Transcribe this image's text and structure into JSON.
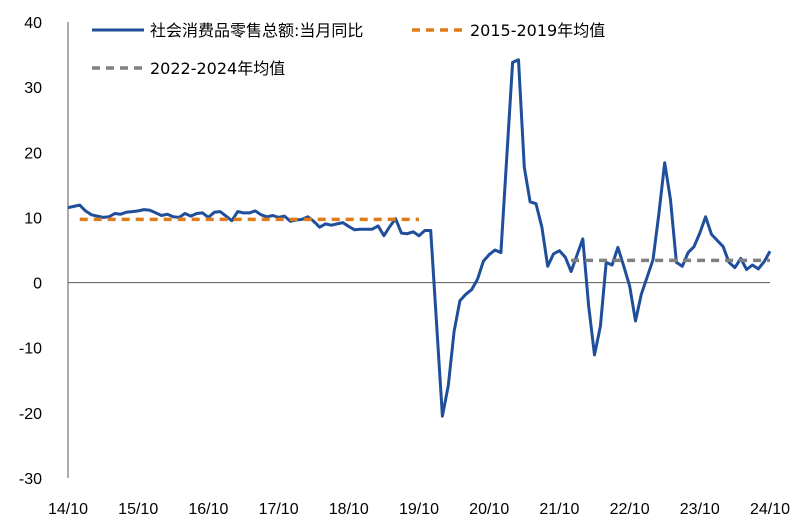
{
  "chart_data": {
    "type": "line",
    "title": "",
    "xlabel": "",
    "ylabel": "",
    "ylim": [
      -30,
      40
    ],
    "yticks": [
      "40",
      "30",
      "20",
      "10",
      "0",
      "-10",
      "-20",
      "-30"
    ],
    "xticks": [
      "14/10",
      "15/10",
      "16/10",
      "17/10",
      "18/10",
      "19/10",
      "20/10",
      "21/10",
      "22/10",
      "23/10",
      "24/10"
    ],
    "grid": false,
    "legend_position": "top",
    "series": [
      {
        "name": "社会消费品零售总额:当月同比",
        "style": "solid",
        "color": "#1F4E9A",
        "points": [
          [
            "14/10",
            11.5
          ],
          [
            "14/11",
            11.7
          ],
          [
            "14/12",
            11.9
          ],
          [
            "15/01",
            11.0
          ],
          [
            "15/02",
            10.4
          ],
          [
            "15/03",
            10.2
          ],
          [
            "15/04",
            10.0
          ],
          [
            "15/05",
            10.1
          ],
          [
            "15/06",
            10.6
          ],
          [
            "15/07",
            10.5
          ],
          [
            "15/08",
            10.8
          ],
          [
            "15/09",
            10.9
          ],
          [
            "15/10",
            11.0
          ],
          [
            "15/11",
            11.2
          ],
          [
            "15/12",
            11.1
          ],
          [
            "16/01",
            10.7
          ],
          [
            "16/02",
            10.3
          ],
          [
            "16/03",
            10.5
          ],
          [
            "16/04",
            10.1
          ],
          [
            "16/05",
            10.0
          ],
          [
            "16/06",
            10.6
          ],
          [
            "16/07",
            10.2
          ],
          [
            "16/08",
            10.6
          ],
          [
            "16/09",
            10.7
          ],
          [
            "16/10",
            10.0
          ],
          [
            "16/11",
            10.8
          ],
          [
            "16/12",
            10.9
          ],
          [
            "17/01",
            10.2
          ],
          [
            "17/02",
            9.5
          ],
          [
            "17/03",
            10.9
          ],
          [
            "17/04",
            10.7
          ],
          [
            "17/05",
            10.7
          ],
          [
            "17/06",
            11.0
          ],
          [
            "17/07",
            10.4
          ],
          [
            "17/08",
            10.1
          ],
          [
            "17/09",
            10.3
          ],
          [
            "17/10",
            10.0
          ],
          [
            "17/11",
            10.2
          ],
          [
            "17/12",
            9.4
          ],
          [
            "18/01",
            9.6
          ],
          [
            "18/02",
            9.7
          ],
          [
            "18/03",
            10.1
          ],
          [
            "18/04",
            9.4
          ],
          [
            "18/05",
            8.5
          ],
          [
            "18/06",
            9.0
          ],
          [
            "18/07",
            8.8
          ],
          [
            "18/08",
            9.0
          ],
          [
            "18/09",
            9.2
          ],
          [
            "18/10",
            8.6
          ],
          [
            "18/11",
            8.1
          ],
          [
            "18/12",
            8.2
          ],
          [
            "19/01",
            8.2
          ],
          [
            "19/02",
            8.2
          ],
          [
            "19/03",
            8.7
          ],
          [
            "19/04",
            7.2
          ],
          [
            "19/05",
            8.6
          ],
          [
            "19/06",
            9.8
          ],
          [
            "19/07",
            7.6
          ],
          [
            "19/08",
            7.5
          ],
          [
            "19/09",
            7.8
          ],
          [
            "19/10",
            7.2
          ],
          [
            "19/11",
            8.0
          ],
          [
            "19/12",
            8.0
          ],
          [
            "20/02",
            -20.5
          ],
          [
            "20/03",
            -15.8
          ],
          [
            "20/04",
            -7.5
          ],
          [
            "20/05",
            -2.8
          ],
          [
            "20/06",
            -1.8
          ],
          [
            "20/07",
            -1.1
          ],
          [
            "20/08",
            0.5
          ],
          [
            "20/09",
            3.3
          ],
          [
            "20/10",
            4.3
          ],
          [
            "20/11",
            5.0
          ],
          [
            "20/12",
            4.6
          ],
          [
            "21/02",
            33.8
          ],
          [
            "21/03",
            34.2
          ],
          [
            "21/04",
            17.7
          ],
          [
            "21/05",
            12.4
          ],
          [
            "21/06",
            12.1
          ],
          [
            "21/07",
            8.5
          ],
          [
            "21/08",
            2.5
          ],
          [
            "21/09",
            4.4
          ],
          [
            "21/10",
            4.9
          ],
          [
            "21/11",
            3.9
          ],
          [
            "21/12",
            1.7
          ],
          [
            "22/02",
            6.7
          ],
          [
            "22/03",
            -3.5
          ],
          [
            "22/04",
            -11.1
          ],
          [
            "22/05",
            -6.7
          ],
          [
            "22/06",
            3.1
          ],
          [
            "22/07",
            2.7
          ],
          [
            "22/08",
            5.4
          ],
          [
            "22/09",
            2.5
          ],
          [
            "22/10",
            -0.5
          ],
          [
            "22/11",
            -5.9
          ],
          [
            "22/12",
            -1.8
          ],
          [
            "23/02",
            3.5
          ],
          [
            "23/03",
            10.6
          ],
          [
            "23/04",
            18.4
          ],
          [
            "23/05",
            12.7
          ],
          [
            "23/06",
            3.1
          ],
          [
            "23/07",
            2.5
          ],
          [
            "23/08",
            4.6
          ],
          [
            "23/09",
            5.5
          ],
          [
            "23/10",
            7.6
          ],
          [
            "23/11",
            10.1
          ],
          [
            "23/12",
            7.4
          ],
          [
            "24/02",
            5.5
          ],
          [
            "24/03",
            3.1
          ],
          [
            "24/04",
            2.3
          ],
          [
            "24/05",
            3.7
          ],
          [
            "24/06",
            2.0
          ],
          [
            "24/07",
            2.7
          ],
          [
            "24/08",
            2.1
          ],
          [
            "24/09",
            3.2
          ],
          [
            "24/10",
            4.8
          ]
        ]
      },
      {
        "name": "2015-2019年均值",
        "style": "dashed",
        "color": "#E07B1A",
        "points": [
          [
            "14/12",
            9.7
          ],
          [
            "19/10",
            9.7
          ]
        ]
      },
      {
        "name": "2022-2024年均值",
        "style": "dashed",
        "color": "#808080",
        "points": [
          [
            "21/12",
            3.4
          ],
          [
            "24/10",
            3.4
          ]
        ]
      }
    ]
  }
}
